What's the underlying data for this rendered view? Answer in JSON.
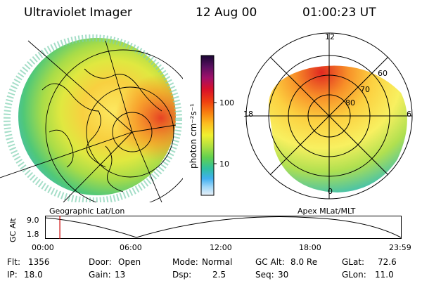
{
  "header": {
    "instrument": "Ultraviolet Imager",
    "date": "12 Aug 00",
    "time": "01:00:23 UT"
  },
  "colorbar": {
    "unit_label": "photon cm⁻²s⁻¹",
    "ticks": [
      "100",
      "10"
    ],
    "colors": [
      "#1a0633",
      "#5a1060",
      "#a0106a",
      "#d8102a",
      "#f04010",
      "#f88010",
      "#fcc020",
      "#f0f030",
      "#b0e040",
      "#60d050",
      "#30c0a0",
      "#40b0f0",
      "#a0d8f8",
      "#e8f0f8"
    ]
  },
  "left_panel": {
    "caption": "Geographic Lat/Lon"
  },
  "right_panel": {
    "caption": "Apex MLat/MLT",
    "mlt_labels": [
      "12",
      "18",
      "6",
      "0"
    ],
    "lat_labels": [
      "60",
      "70",
      "80"
    ]
  },
  "orbit_plot": {
    "ylabel": "GC Alt",
    "y_ticks": [
      "9.0",
      "1.8"
    ],
    "x_ticks": [
      "00:00",
      "06:00",
      "12:00",
      "18:00",
      "23:59"
    ],
    "marker_time_hours": 1.0,
    "marker_color": "#cc0000"
  },
  "info": {
    "row1": [
      {
        "label": "Flt:",
        "value": "1356"
      },
      {
        "label": "Door:",
        "value": "Open"
      },
      {
        "label": "Mode:",
        "value": "Normal"
      },
      {
        "label": "GC Alt:",
        "value": "8.0 Re"
      },
      {
        "label": "GLat:",
        "value": "72.6"
      }
    ],
    "row2": [
      {
        "label": "IP:",
        "value": "18.0"
      },
      {
        "label": "Gain:",
        "value": "13"
      },
      {
        "label": "Dsp:",
        "value": "2.5"
      },
      {
        "label": "Seq:",
        "value": "30"
      },
      {
        "label": "GLon:",
        "value": "11.0"
      }
    ]
  }
}
